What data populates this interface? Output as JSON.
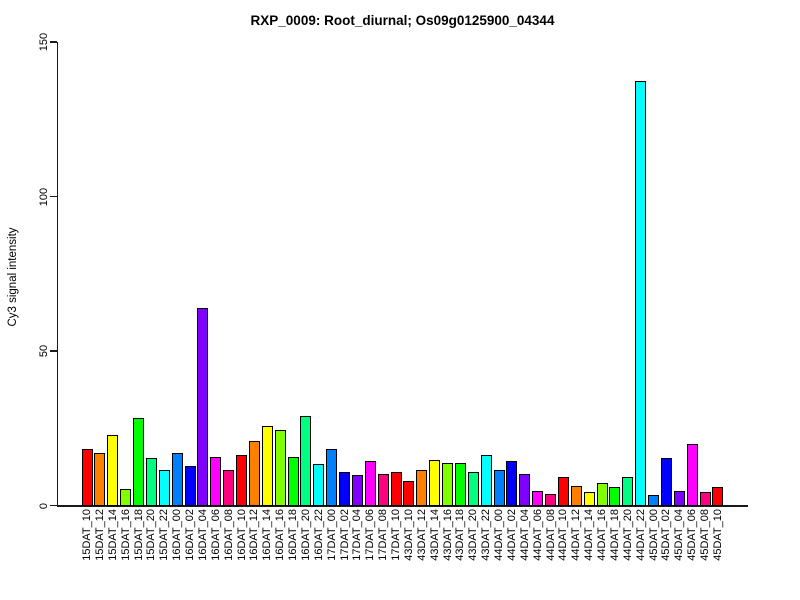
{
  "chart_data": {
    "type": "bar",
    "title": "RXP_0009: Root_diurnal; Os09g0125900_04344",
    "xlabel": "",
    "ylabel": "Cy3 signal intensity",
    "ylim": [
      0,
      150
    ],
    "yticks": [
      0,
      50,
      100,
      150
    ],
    "grid": false,
    "legend_position": "none",
    "bar_border_color": "#000000",
    "palette_cycle": [
      "#FF0000",
      "#FF8000",
      "#FFFF00",
      "#80FF00",
      "#00FF00",
      "#00FF80",
      "#00FFFF",
      "#0080FF",
      "#0000FF",
      "#8000FF",
      "#FF00FF",
      "#FF0080"
    ],
    "categories": [
      "15DAT_10",
      "15DAT_12",
      "15DAT_14",
      "15DAT_16",
      "15DAT_18",
      "15DAT_20",
      "15DAT_22",
      "16DAT_00",
      "16DAT_02",
      "16DAT_04",
      "16DAT_06",
      "16DAT_08",
      "16DAT_10",
      "16DAT_12",
      "16DAT_14",
      "16DAT_16",
      "16DAT_18",
      "16DAT_20",
      "16DAT_22",
      "17DAT_00",
      "17DAT_02",
      "17DAT_04",
      "17DAT_06",
      "17DAT_08",
      "17DAT_10",
      "43DAT_10",
      "43DAT_12",
      "43DAT_14",
      "43DAT_16",
      "43DAT_18",
      "43DAT_20",
      "43DAT_22",
      "44DAT_00",
      "44DAT_02",
      "44DAT_04",
      "44DAT_06",
      "44DAT_08",
      "44DAT_10",
      "44DAT_12",
      "44DAT_14",
      "44DAT_16",
      "44DAT_18",
      "44DAT_20",
      "44DAT_22",
      "45DAT_00",
      "45DAT_02",
      "45DAT_04",
      "45DAT_06",
      "45DAT_08",
      "45DAT_10"
    ],
    "values": [
      18.5,
      17,
      23,
      5.5,
      28.5,
      15.5,
      11.5,
      17,
      13,
      64,
      16,
      11.5,
      16.5,
      21,
      26,
      24.5,
      16,
      29,
      13.5,
      18.5,
      11,
      10,
      14.5,
      10.5,
      11,
      8,
      11.5,
      15,
      14,
      14,
      11,
      16.5,
      11.5,
      14.5,
      10.5,
      5,
      4,
      9.5,
      6.5,
      4.5,
      7.5,
      6,
      9.5,
      137.5,
      3.5,
      15.5,
      5,
      20,
      4.5,
      6
    ],
    "colors": [
      "#FF0000",
      "#FF8000",
      "#FFFF00",
      "#80FF00",
      "#00FF00",
      "#00FF80",
      "#00FFFF",
      "#0080FF",
      "#0000FF",
      "#8000FF",
      "#FF00FF",
      "#FF0080",
      "#FF0000",
      "#FF8000",
      "#FFFF00",
      "#80FF00",
      "#00FF00",
      "#00FF80",
      "#00FFFF",
      "#0080FF",
      "#0000FF",
      "#8000FF",
      "#FF00FF",
      "#FF0080",
      "#FF0000",
      "#FF0000",
      "#FF8000",
      "#FFFF00",
      "#80FF00",
      "#00FF00",
      "#00FF80",
      "#00FFFF",
      "#0080FF",
      "#0000FF",
      "#8000FF",
      "#FF00FF",
      "#FF0080",
      "#FF0000",
      "#FF8000",
      "#FFFF00",
      "#80FF00",
      "#00FF00",
      "#00FF80",
      "#00FFFF",
      "#0080FF",
      "#0000FF",
      "#8000FF",
      "#FF00FF",
      "#FF0080",
      "#FF0000"
    ]
  }
}
